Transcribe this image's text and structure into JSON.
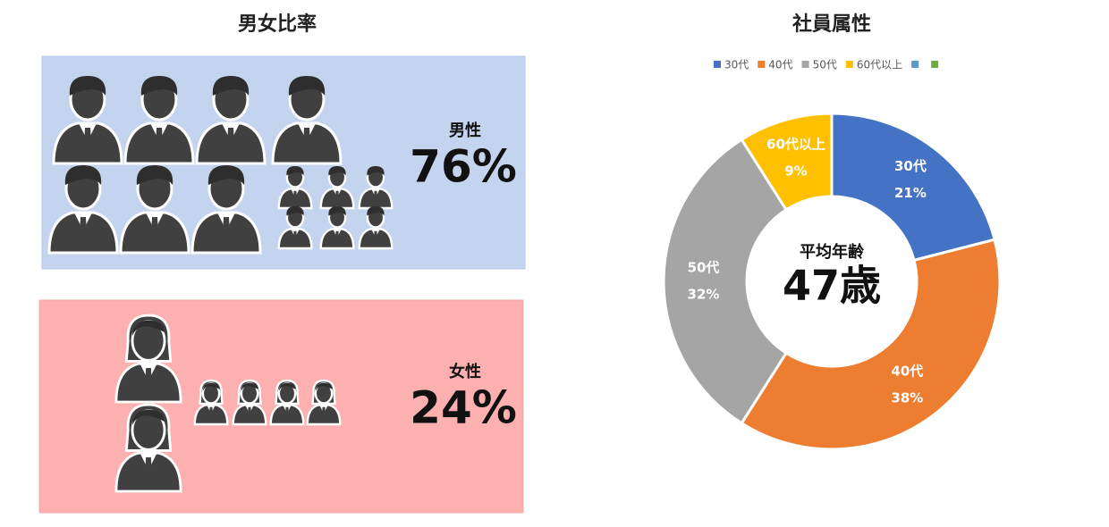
{
  "gender_ratio": {
    "title": "男女比率",
    "groups": [
      {
        "label": "男性",
        "value_label": "76%"
      },
      {
        "label": "女性",
        "value_label": "24%"
      }
    ]
  },
  "chart_data": {
    "type": "donut",
    "title": "社員属性",
    "categories": [
      "30代",
      "40代",
      "50代",
      "60代以上",
      null,
      null
    ],
    "values": [
      21,
      38,
      32,
      9,
      null,
      null
    ],
    "value_labels": [
      "21%",
      "38%",
      "32%",
      "9%",
      null,
      null
    ],
    "colors": [
      "#4472c4",
      "#ed7d31",
      "#a5a5a5",
      "#ffc000",
      "#5b9bd5",
      "#70ad47"
    ],
    "legend": "top",
    "annotations": [
      "平均年齢",
      "47歳"
    ]
  }
}
